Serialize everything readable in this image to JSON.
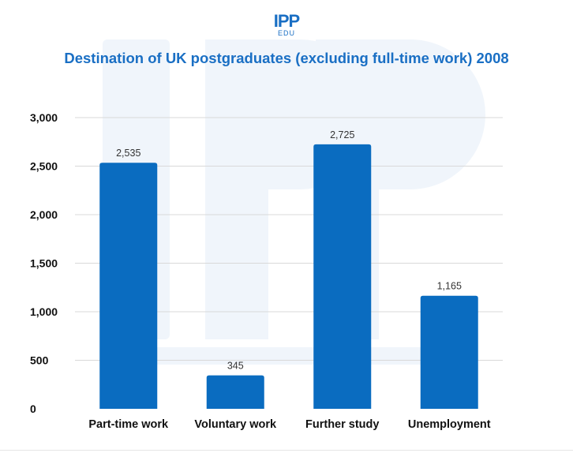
{
  "logo": {
    "main": "IPP",
    "sub": "EDU"
  },
  "colors": {
    "bar": "#0a6cc0",
    "brand": "#1a6fc4",
    "grid": "#d9d9d9",
    "text": "#111111",
    "label": "#333333",
    "watermark": "#f0f5fb"
  },
  "chart_data": {
    "type": "bar",
    "title": "Destination of UK postgraduates (excluding full-time work) 2008",
    "categories": [
      "Part-time work",
      "Voluntary work",
      "Further study",
      "Unemployment"
    ],
    "values": [
      2535,
      345,
      2725,
      1165
    ],
    "value_labels": [
      "2,535",
      "345",
      "2,725",
      "1,165"
    ],
    "yticks": [
      0,
      500,
      1000,
      1500,
      2000,
      2500,
      3000
    ],
    "ytick_labels": [
      "0",
      "500",
      "1,000",
      "1,500",
      "2,000",
      "2,500",
      "3,000"
    ],
    "ylim": [
      0,
      3000
    ],
    "xlabel": "",
    "ylabel": "",
    "grid": true
  }
}
